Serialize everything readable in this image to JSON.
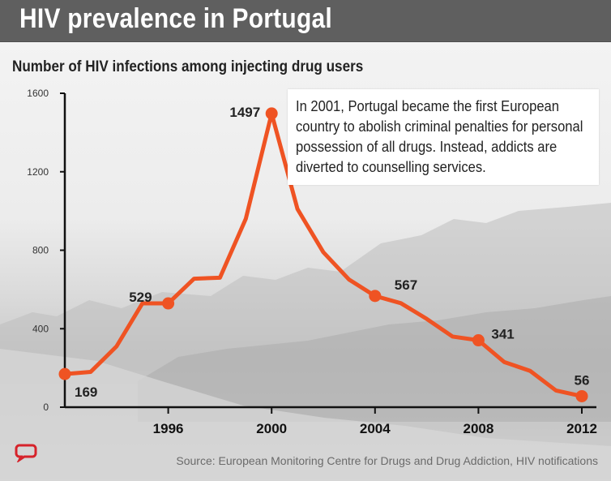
{
  "header": {
    "title": "HIV prevalence in Portugal"
  },
  "subtitle": "Number of HIV infections among injecting drug users",
  "annotation": "In 2001, Portugal became the first European country to abolish criminal penalties for personal possession of all drugs. Instead, addicts are diverted to counselling services.",
  "source": "Source: European Monitoring Centre for Drugs and Drug Addiction, HIV notifications",
  "colors": {
    "line": "#ef5323",
    "header_bg": "#5f5f5f",
    "axis": "#111111",
    "logo": "#d6232b"
  },
  "icons": {
    "logo": "speech-bubble-logo-icon"
  },
  "chart_data": {
    "type": "line",
    "title": "Number of HIV infections among injecting drug users",
    "xlabel": "",
    "ylabel": "",
    "xlim": [
      1992,
      2012
    ],
    "ylim": [
      0,
      1600
    ],
    "xticks": [
      1996,
      2000,
      2004,
      2008,
      2012
    ],
    "yticks": [
      0,
      400,
      800,
      1200,
      1600
    ],
    "grid": false,
    "legend": "none",
    "series": [
      {
        "x": [
          1992,
          1993,
          1994,
          1995,
          1996,
          1997,
          1998,
          1999,
          2000,
          2001,
          2002,
          2003,
          2004,
          2005,
          2006,
          2007,
          2008,
          2009,
          2010,
          2011,
          2012
        ],
        "y": [
          169,
          180,
          310,
          529,
          529,
          655,
          660,
          960,
          1497,
          1010,
          790,
          650,
          567,
          530,
          450,
          360,
          341,
          230,
          185,
          85,
          56
        ]
      }
    ],
    "highlighted_points": [
      {
        "x": 1992,
        "y": 169,
        "label": "169"
      },
      {
        "x": 1996,
        "y": 529,
        "label": "529"
      },
      {
        "x": 2000,
        "y": 1497,
        "label": "1497"
      },
      {
        "x": 2004,
        "y": 567,
        "label": "567"
      },
      {
        "x": 2008,
        "y": 341,
        "label": "341"
      },
      {
        "x": 2012,
        "y": 56,
        "label": "56"
      }
    ]
  }
}
